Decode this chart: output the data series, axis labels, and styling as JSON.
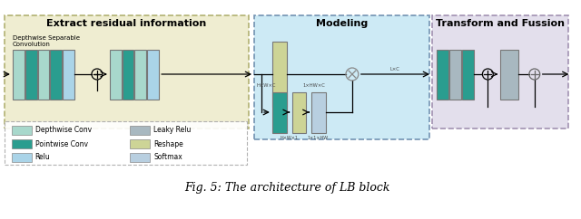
{
  "title": "Fig. 5: The architecture of LB block",
  "section1_title": "Extract residual information",
  "section2_title": "Modeling",
  "section3_title": "Transform and Fussion",
  "legend_label1": "Depthwise Conv",
  "legend_label2": "Pointwise Conv",
  "legend_label3": "Relu",
  "legend_label4": "Leaky Relu",
  "legend_label5": "Reshape",
  "legend_label6": "Softmax",
  "color_depthwise": "#a8d8cc",
  "color_pointwise": "#2a9d8f",
  "color_relu": "#aad4e8",
  "color_leaky_relu": "#a8b8c0",
  "color_reshape": "#cdd496",
  "color_softmax": "#b8cfe0",
  "color_section1_bg": "#eeeccc",
  "color_section2_bg": "#c8e8f4",
  "color_section3_bg": "#e0dcea",
  "fig_bg": "#ffffff"
}
